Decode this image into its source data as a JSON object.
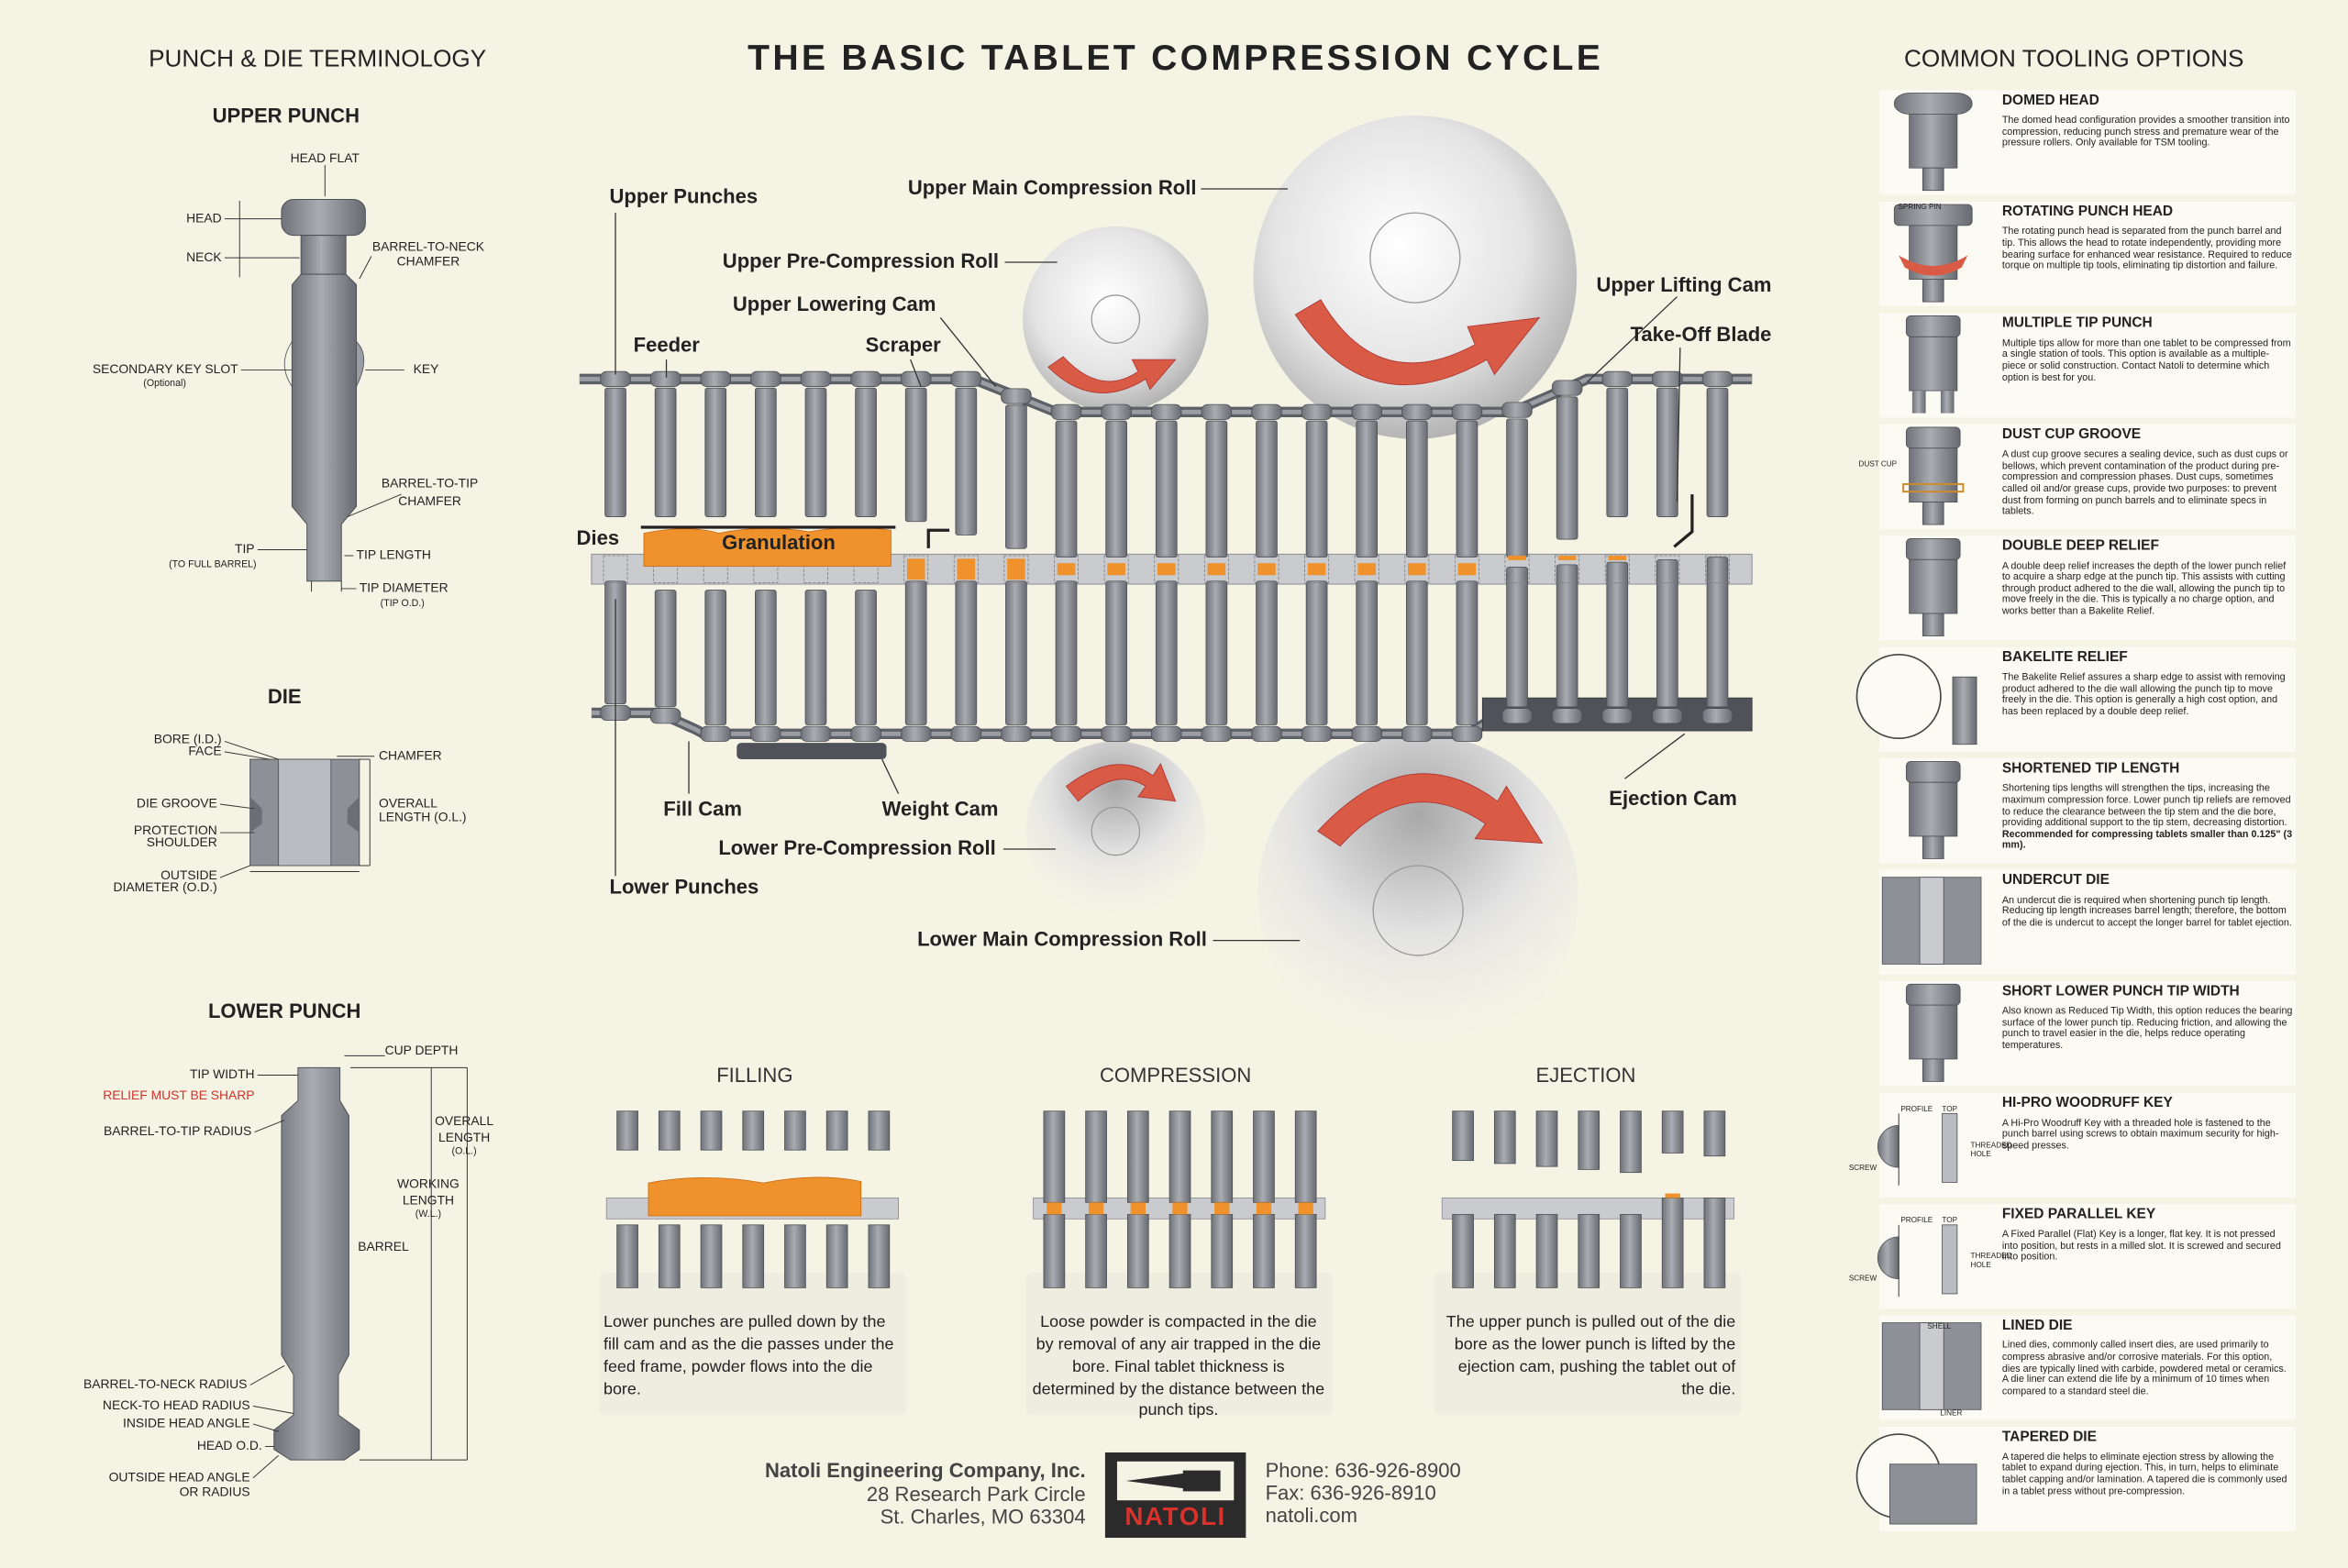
{
  "title": "THE BASIC TABLET COMPRESSION CYCLE",
  "left": {
    "heading": "PUNCH & DIE TERMINOLOGY",
    "upper_punch": {
      "title": "UPPER PUNCH",
      "labels": [
        "HEAD FLAT",
        "HEAD",
        "NECK",
        "BARREL-TO-NECK",
        "CHAMFER",
        "SECONDARY KEY SLOT",
        "(Optional)",
        "KEY",
        "BARREL-TO-TIP",
        "CHAMFER",
        "TIP",
        "(TO FULL BARREL)",
        "TIP LENGTH",
        "TIP DIAMETER",
        "(TIP O.D.)"
      ]
    },
    "die": {
      "title": "DIE",
      "labels": [
        "BORE (I.D.)",
        "FACE",
        "CHAMFER",
        "DIE GROOVE",
        "OVERALL",
        "LENGTH (O.L.)",
        "PROTECTION",
        "SHOULDER",
        "OUTSIDE",
        "DIAMETER (O.D.)"
      ]
    },
    "lower_punch": {
      "title": "LOWER PUNCH",
      "labels": [
        "CUP DEPTH",
        "TIP WIDTH",
        "RELIEF MUST BE SHARP",
        "BARREL-TO-TIP RADIUS",
        "OVERALL",
        "LENGTH",
        "(O.L.)",
        "WORKING",
        "LENGTH",
        "(W.L.)",
        "BARREL",
        "BARREL-TO-NECK RADIUS",
        "NECK-TO HEAD RADIUS",
        "INSIDE HEAD ANGLE",
        "HEAD O.D.",
        "OUTSIDE HEAD ANGLE",
        "OR RADIUS"
      ]
    }
  },
  "machine": {
    "labels": [
      "Upper Punches",
      "Upper Main Compression Roll",
      "Upper Pre-Compression Roll",
      "Upper Lowering Cam",
      "Feeder",
      "Scraper",
      "Upper Lifting Cam",
      "Take-Off Blade",
      "Dies",
      "Granulation",
      "Fill Cam",
      "Weight Cam",
      "Lower Pre-Compression Roll",
      "Lower Punches",
      "Ejection Cam",
      "Lower Main Compression Roll"
    ]
  },
  "stages": [
    {
      "title": "FILLING",
      "text": "Lower punches are pulled down by the fill cam and as the die passes under the feed frame, powder flows into the die bore."
    },
    {
      "title": "COMPRESSION",
      "text": "Loose powder is compacted in the die by removal of any air trapped in the die bore. Final tablet thickness is determined by the distance between the punch tips."
    },
    {
      "title": "EJECTION",
      "text": "The upper punch is pulled out of the die bore as the lower punch is lifted by the ejection cam, pushing the tablet out of the die."
    }
  ],
  "right": {
    "heading": "COMMON TOOLING OPTIONS",
    "options": [
      {
        "title": "DOMED HEAD",
        "text": "The domed head configuration provides a smoother transition into compression, reducing punch stress and premature wear of the pressure rollers. Only available for TSM tooling."
      },
      {
        "title": "ROTATING PUNCH HEAD",
        "text": "The rotating punch head is separated from the punch barrel and tip. This allows the head to rotate independently, providing more bearing surface for enhanced wear resistance. Required to reduce torque on multiple tip tools, eliminating tip distortion and failure.",
        "callouts": [
          "SPRING PIN"
        ]
      },
      {
        "title": "MULTIPLE TIP PUNCH",
        "text": "Multiple tips allow for more than one tablet to be compressed from a single station of tools. This option is available as a multiple-piece or solid construction. Contact Natoli to determine which option is best for you."
      },
      {
        "title": "DUST CUP GROOVE",
        "text": "A dust cup groove secures a sealing device, such as dust cups or bellows, which prevent contamination of the product during pre-compression and compression phases. Dust cups, sometimes called oil and/or grease cups, provide two purposes: to prevent dust from forming on punch barrels and to eliminate specs in tablets.",
        "callouts": [
          "DUST CUP"
        ]
      },
      {
        "title": "DOUBLE DEEP RELIEF",
        "text": "A double deep relief increases the depth of the lower punch relief to acquire a sharp edge at the punch tip. This assists with cutting through product adhered to the die wall, allowing the punch tip to move freely in the die. This is typically a no charge option, and works better than a Bakelite Relief."
      },
      {
        "title": "BAKELITE RELIEF",
        "text": "The Bakelite Relief assures a sharp edge to assist with removing product adhered to the die wall allowing the punch tip to move freely in the die. This option is generally a high cost option, and has been replaced by a double deep relief."
      },
      {
        "title": "SHORTENED TIP LENGTH",
        "text": "Shortening tips lengths will strengthen the tips, increasing the maximum compression force. Lower punch tip reliefs are removed to reduce the clearance between the tip stem and the die bore, providing additional support to the tip stem, decreasing distortion.",
        "emphasis": "Recommended for compressing tablets smaller than 0.125\" (3 mm)."
      },
      {
        "title": "UNDERCUT DIE",
        "text": "An undercut die is required when shortening punch tip length. Reducing tip length increases barrel length; therefore, the bottom of the die is undercut to accept the longer barrel for tablet ejection."
      },
      {
        "title": "SHORT LOWER PUNCH TIP WIDTH",
        "text": "Also known as Reduced Tip Width, this option reduces the bearing surface of the lower punch tip. Reducing friction, and allowing the punch to travel easier in the die, helps reduce operating temperatures."
      },
      {
        "title": "HI-PRO WOODRUFF KEY",
        "text": "A Hi-Pro Woodruff Key with a threaded hole is fastened to the punch barrel using screws to obtain maximum security for high-speed presses.",
        "callouts": [
          "PROFILE",
          "TOP",
          "THREADED",
          "HOLE",
          "SCREW"
        ]
      },
      {
        "title": "FIXED PARALLEL KEY",
        "text": "A Fixed Parallel (Flat) Key is a longer, flat key. It is not pressed into position, but rests in a milled slot. It is screwed and secured into position.",
        "callouts": [
          "PROFILE",
          "TOP",
          "THREADED",
          "HOLE",
          "SCREW"
        ]
      },
      {
        "title": "LINED DIE",
        "text": "Lined dies, commonly called insert dies, are used primarily to compress abrasive and/or corrosive materials. For this option, dies are typically lined with carbide, powdered metal or ceramics. A die liner can extend die life by a minimum of 10 times when compared to a standard steel die.",
        "callouts": [
          "SHELL",
          "LINER"
        ]
      },
      {
        "title": "TAPERED DIE",
        "text": "A tapered die helps to eliminate ejection stress by allowing the tablet to expand during ejection. This, in turn, helps to eliminate tablet capping and/or lamination. A tapered die is commonly used in a tablet press without pre-compression."
      }
    ]
  },
  "footer": {
    "company": "Natoli Engineering Company, Inc.",
    "address": [
      "28 Research Park Circle",
      "St. Charles, MO 63304"
    ],
    "contact": [
      "Phone: 636-926-8900",
      "Fax: 636-926-8910",
      "natoli.com"
    ],
    "logo": "NATOLI"
  }
}
